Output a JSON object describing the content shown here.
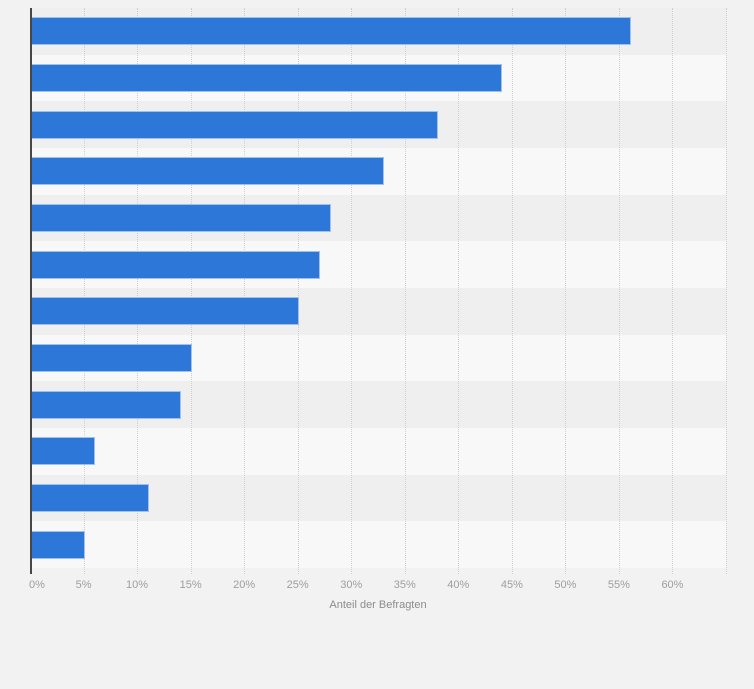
{
  "chart_data": {
    "type": "bar",
    "orientation": "horizontal",
    "title": "",
    "xlabel": "Anteil der Befragten",
    "ylabel": "",
    "categories": [
      "",
      "",
      "",
      "",
      "",
      "",
      "",
      "",
      "",
      "",
      "",
      ""
    ],
    "category_labels_visible": false,
    "values": [
      56,
      44,
      38,
      33,
      28,
      27,
      25,
      15,
      14,
      6,
      11,
      5
    ],
    "unit": "%",
    "xlim": [
      0,
      65
    ],
    "x_tick_labels": [
      "0%",
      "5%",
      "10%",
      "15%",
      "20%",
      "25%",
      "30%",
      "35%",
      "40%",
      "45%",
      "50%",
      "55%",
      "60%"
    ],
    "x_tick_step": 5,
    "grid": "vertical-dotted",
    "legend": "none"
  },
  "colors": {
    "page_bg": "#f2f2f3",
    "band_dark": "#efeff0",
    "band_light": "#f8f8f9",
    "gridline": "#cfcfcf",
    "axis_line": "#474747",
    "bar_fill": "#2d77d9",
    "tick_label": "#9e9e9e",
    "axis_title": "#8c8c8c"
  }
}
